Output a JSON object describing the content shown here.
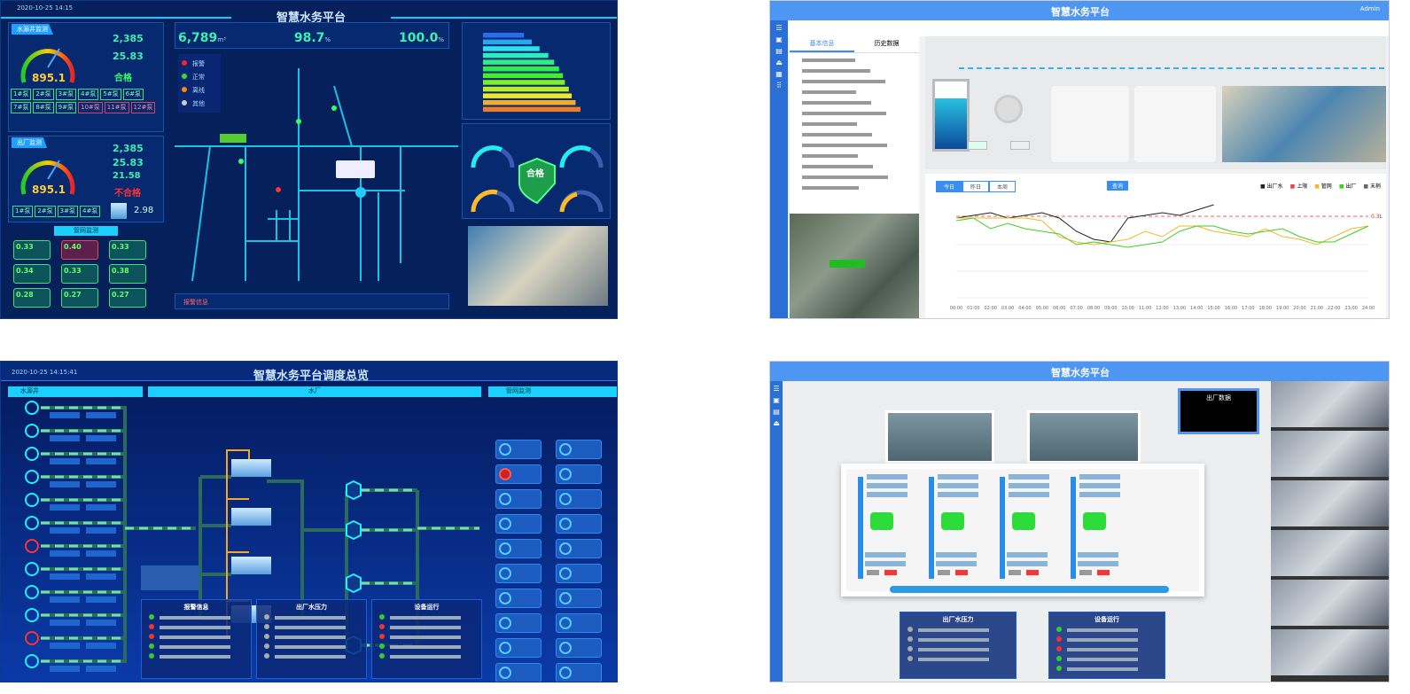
{
  "p1": {
    "title": "智慧水务平台",
    "date": "2020-10-25 14:15",
    "stats": [
      {
        "value": "6,789",
        "unit": "m³"
      },
      {
        "value": "98.7",
        "unit": "%"
      },
      {
        "value": "100.0",
        "unit": "%"
      }
    ],
    "gauge1": {
      "value": "895.1",
      "flow": "2,385",
      "pressure": "25.83",
      "status": "合格",
      "sec": "水源井监测"
    },
    "gauge2": {
      "value": "895.1",
      "flow": "2,385",
      "pressure": "25.83",
      "temp": "21.58",
      "status": "不合格",
      "level": "2.98",
      "sec": "出厂监测"
    },
    "pumps1": [
      "1#泵",
      "2#泵",
      "3#泵",
      "4#泵",
      "5#泵",
      "6#泵",
      "7#泵",
      "8#泵",
      "9#泵",
      "10#泵",
      "11#泵",
      "12#泵"
    ],
    "pumps2": [
      "1#泵",
      "2#泵",
      "3#泵",
      "4#泵"
    ],
    "quality_title": "管网监测",
    "quality": [
      "0.33",
      "0.40",
      "0.33",
      "0.34",
      "0.33",
      "0.38",
      "0.28",
      "0.27",
      "0.27"
    ],
    "legend": [
      "报警",
      "正常",
      "离线",
      "其他"
    ],
    "shield": "合格",
    "bars": [
      0.42,
      0.5,
      0.58,
      0.67,
      0.73,
      0.78,
      0.82,
      0.84,
      0.88,
      0.91,
      0.95,
      1.0
    ],
    "alert": "报警信息"
  },
  "p2": {
    "title": "智慧水务平台",
    "user": "Admin",
    "tabs": [
      "基本信息",
      "历史数据"
    ],
    "info_rows": 13,
    "chart_tabs": [
      "今日",
      "昨日",
      "本周"
    ],
    "query": "查询",
    "legend": [
      "出厂水",
      "上限",
      "管网",
      "出厂",
      "末梢"
    ],
    "limit": "0.3L",
    "series": {
      "black": [
        0.3,
        0.31,
        0.32,
        0.3,
        0.31,
        0.32,
        0.3,
        0.25,
        0.22,
        0.21,
        0.3,
        0.31,
        0.32,
        0.31,
        0.33,
        0.35
      ],
      "yellow": [
        0.3,
        0.3,
        0.3,
        0.3,
        0.3,
        0.29,
        0.23,
        0.21,
        0.2,
        0.21,
        0.22,
        0.25,
        0.23,
        0.27,
        0.27,
        0.25,
        0.24,
        0.23,
        0.26,
        0.23,
        0.22,
        0.2,
        0.23,
        0.26,
        0.27
      ],
      "green": [
        0.29,
        0.3,
        0.26,
        0.28,
        0.26,
        0.25,
        0.24,
        0.2,
        0.21,
        0.2,
        0.19,
        0.2,
        0.21,
        0.25,
        0.27,
        0.27,
        0.25,
        0.24,
        0.25,
        0.26,
        0.23,
        0.21,
        0.21,
        0.24,
        0.27
      ]
    },
    "xticks": [
      "00:00",
      "01:00",
      "02:00",
      "03:00",
      "04:00",
      "05:00",
      "06:00",
      "07:00",
      "08:00",
      "09:00",
      "10:00",
      "11:00",
      "12:00",
      "13:00",
      "14:00",
      "15:00",
      "16:00",
      "17:00",
      "18:00",
      "19:00",
      "20:00",
      "21:00",
      "22:00",
      "23:00",
      "24:00"
    ]
  },
  "p3": {
    "title": "智慧水务平台调度总览",
    "date": "2020-10-25 14:15:41",
    "sec_left": "水源井",
    "sec_mid": "水厂",
    "sec_right": "管网监测",
    "wells": 12,
    "cards": 20,
    "tables": [
      {
        "title": "报警信息"
      },
      {
        "title": "出厂水压力"
      },
      {
        "title": "设备运行"
      }
    ]
  },
  "p4": {
    "title": "智慧水务平台",
    "panel": "出厂数据",
    "tables": [
      {
        "title": "出厂水压力"
      },
      {
        "title": "设备运行"
      }
    ],
    "cams": 6
  }
}
